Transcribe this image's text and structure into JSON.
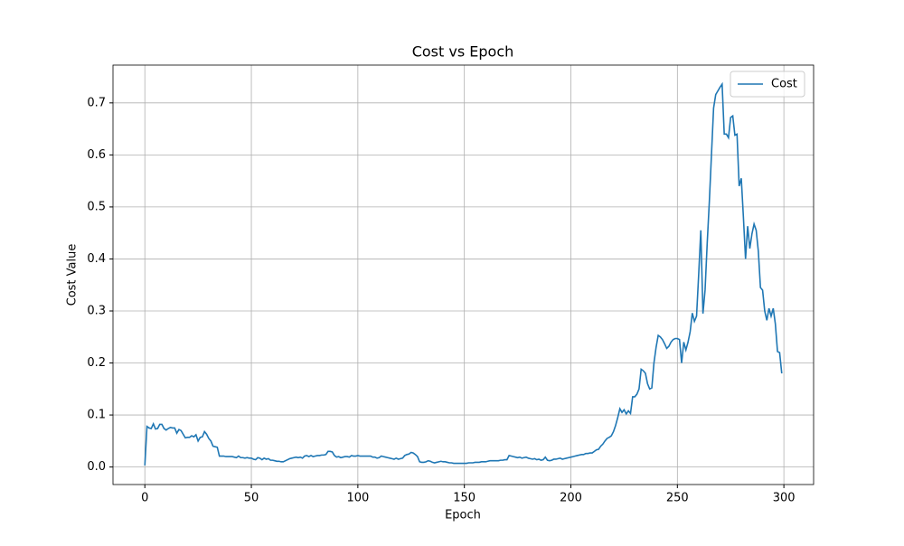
{
  "chart_data": {
    "type": "line",
    "title": "Cost vs Epoch",
    "xlabel": "Epoch",
    "ylabel": "Cost Value",
    "x": [
      0,
      1,
      2,
      3,
      4,
      5,
      6,
      7,
      8,
      9,
      10,
      11,
      12,
      13,
      14,
      15,
      16,
      17,
      18,
      19,
      20,
      21,
      22,
      23,
      24,
      25,
      26,
      27,
      28,
      29,
      30,
      31,
      32,
      33,
      34,
      35,
      36,
      37,
      38,
      39,
      40,
      41,
      42,
      43,
      44,
      45,
      46,
      47,
      48,
      49,
      50,
      51,
      52,
      53,
      54,
      55,
      56,
      57,
      58,
      59,
      60,
      61,
      62,
      63,
      64,
      65,
      66,
      67,
      68,
      69,
      70,
      71,
      72,
      73,
      74,
      75,
      76,
      77,
      78,
      79,
      80,
      81,
      82,
      83,
      84,
      85,
      86,
      87,
      88,
      89,
      90,
      91,
      92,
      93,
      94,
      95,
      96,
      97,
      98,
      99,
      100,
      101,
      102,
      103,
      104,
      105,
      106,
      107,
      108,
      109,
      110,
      111,
      112,
      113,
      114,
      115,
      116,
      117,
      118,
      119,
      120,
      121,
      122,
      123,
      124,
      125,
      126,
      127,
      128,
      129,
      130,
      131,
      132,
      133,
      134,
      135,
      136,
      137,
      138,
      139,
      140,
      141,
      142,
      143,
      144,
      145,
      146,
      147,
      148,
      149,
      150,
      151,
      152,
      153,
      154,
      155,
      156,
      157,
      158,
      159,
      160,
      161,
      162,
      163,
      164,
      165,
      166,
      167,
      168,
      169,
      170,
      171,
      172,
      173,
      174,
      175,
      176,
      177,
      178,
      179,
      180,
      181,
      182,
      183,
      184,
      185,
      186,
      187,
      188,
      189,
      190,
      191,
      192,
      193,
      194,
      195,
      196,
      197,
      198,
      199,
      200,
      201,
      202,
      203,
      204,
      205,
      206,
      207,
      208,
      209,
      210,
      211,
      212,
      213,
      214,
      215,
      216,
      217,
      218,
      219,
      220,
      221,
      222,
      223,
      224,
      225,
      226,
      227,
      228,
      229,
      230,
      231,
      232,
      233,
      234,
      235,
      236,
      237,
      238,
      239,
      240,
      241,
      242,
      243,
      244,
      245,
      246,
      247,
      248,
      249,
      250,
      251,
      252,
      253,
      254,
      255,
      256,
      257,
      258,
      259,
      260,
      261,
      262,
      263,
      264,
      265,
      266,
      267,
      268,
      269,
      270,
      271,
      272,
      273,
      274,
      275,
      276,
      277,
      278,
      279,
      280,
      281,
      282,
      283,
      284,
      285,
      286,
      287,
      288,
      289,
      290,
      291,
      292,
      293,
      294,
      295,
      296,
      297,
      298,
      299
    ],
    "series": [
      {
        "name": "Cost",
        "color": "#1f77b4",
        "values": [
          0.003,
          0.078,
          0.075,
          0.074,
          0.083,
          0.073,
          0.074,
          0.082,
          0.082,
          0.074,
          0.071,
          0.074,
          0.076,
          0.075,
          0.075,
          0.065,
          0.072,
          0.07,
          0.063,
          0.056,
          0.057,
          0.057,
          0.06,
          0.058,
          0.062,
          0.05,
          0.057,
          0.058,
          0.068,
          0.063,
          0.055,
          0.05,
          0.04,
          0.039,
          0.038,
          0.021,
          0.021,
          0.021,
          0.02,
          0.02,
          0.02,
          0.02,
          0.019,
          0.018,
          0.021,
          0.018,
          0.018,
          0.017,
          0.018,
          0.017,
          0.017,
          0.015,
          0.014,
          0.018,
          0.017,
          0.014,
          0.017,
          0.015,
          0.016,
          0.013,
          0.013,
          0.012,
          0.011,
          0.011,
          0.01,
          0.01,
          0.012,
          0.014,
          0.016,
          0.017,
          0.018,
          0.019,
          0.018,
          0.019,
          0.017,
          0.021,
          0.022,
          0.02,
          0.022,
          0.02,
          0.021,
          0.022,
          0.022,
          0.023,
          0.023,
          0.024,
          0.03,
          0.03,
          0.029,
          0.022,
          0.019,
          0.02,
          0.018,
          0.019,
          0.02,
          0.02,
          0.019,
          0.022,
          0.021,
          0.021,
          0.022,
          0.021,
          0.021,
          0.021,
          0.021,
          0.021,
          0.021,
          0.019,
          0.019,
          0.017,
          0.018,
          0.021,
          0.02,
          0.019,
          0.018,
          0.017,
          0.016,
          0.015,
          0.017,
          0.015,
          0.016,
          0.017,
          0.022,
          0.024,
          0.025,
          0.028,
          0.027,
          0.024,
          0.02,
          0.01,
          0.009,
          0.009,
          0.01,
          0.012,
          0.011,
          0.009,
          0.008,
          0.009,
          0.01,
          0.011,
          0.01,
          0.01,
          0.009,
          0.008,
          0.008,
          0.007,
          0.007,
          0.007,
          0.007,
          0.007,
          0.007,
          0.007,
          0.008,
          0.008,
          0.008,
          0.009,
          0.009,
          0.009,
          0.01,
          0.01,
          0.01,
          0.011,
          0.012,
          0.012,
          0.012,
          0.012,
          0.012,
          0.013,
          0.013,
          0.014,
          0.014,
          0.022,
          0.021,
          0.02,
          0.019,
          0.018,
          0.019,
          0.017,
          0.018,
          0.019,
          0.017,
          0.016,
          0.015,
          0.016,
          0.014,
          0.015,
          0.013,
          0.014,
          0.019,
          0.013,
          0.012,
          0.013,
          0.015,
          0.015,
          0.016,
          0.017,
          0.015,
          0.016,
          0.017,
          0.018,
          0.019,
          0.02,
          0.021,
          0.022,
          0.023,
          0.024,
          0.024,
          0.026,
          0.026,
          0.027,
          0.027,
          0.03,
          0.033,
          0.034,
          0.04,
          0.044,
          0.05,
          0.055,
          0.057,
          0.06,
          0.068,
          0.08,
          0.095,
          0.112,
          0.105,
          0.11,
          0.102,
          0.108,
          0.103,
          0.135,
          0.135,
          0.14,
          0.15,
          0.188,
          0.185,
          0.18,
          0.16,
          0.15,
          0.152,
          0.2,
          0.23,
          0.253,
          0.25,
          0.245,
          0.237,
          0.228,
          0.232,
          0.24,
          0.245,
          0.247,
          0.247,
          0.245,
          0.2,
          0.24,
          0.225,
          0.24,
          0.26,
          0.296,
          0.28,
          0.29,
          0.37,
          0.455,
          0.295,
          0.34,
          0.43,
          0.51,
          0.6,
          0.69,
          0.716,
          0.723,
          0.73,
          0.736,
          0.64,
          0.64,
          0.633,
          0.672,
          0.675,
          0.638,
          0.64,
          0.54,
          0.555,
          0.48,
          0.4,
          0.463,
          0.42,
          0.448,
          0.467,
          0.455,
          0.415,
          0.345,
          0.34,
          0.3,
          0.282,
          0.305,
          0.29,
          0.305,
          0.275,
          0.222,
          0.22,
          0.18
        ]
      }
    ],
    "xlim": [
      -14.95,
      313.95
    ],
    "ylim": [
      -0.0337,
      0.7727
    ],
    "xticks": [
      0,
      50,
      100,
      150,
      200,
      250,
      300
    ],
    "yticks": [
      {
        "value": 0,
        "label": "0.0"
      },
      0.1,
      0.2,
      0.3,
      0.4,
      0.5,
      0.6,
      0.7
    ],
    "grid": true,
    "legend": "upper right"
  }
}
